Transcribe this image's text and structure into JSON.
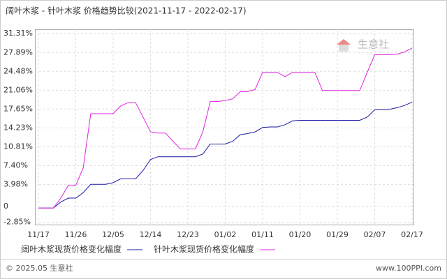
{
  "chart_data": {
    "type": "line",
    "title": "阔叶木浆 - 针叶木浆 价格趋势比较(2021-11-17 - 2022-02-17)",
    "categories": [
      "11/17",
      null,
      null,
      null,
      null,
      "11/26",
      null,
      null,
      null,
      null,
      "12/05",
      null,
      null,
      null,
      null,
      "12/14",
      null,
      null,
      null,
      null,
      "12/23",
      null,
      null,
      null,
      null,
      "01/02",
      null,
      null,
      null,
      null,
      "01/11",
      null,
      null,
      null,
      null,
      "01/20",
      null,
      null,
      null,
      null,
      "01/29",
      null,
      null,
      null,
      null,
      "02/07",
      null,
      null,
      null,
      null,
      "02/17"
    ],
    "series": [
      {
        "name": "阔叶木浆现货价格变化幅度",
        "color": "#1a1aa6",
        "values": [
          -0.3,
          -0.3,
          -0.3,
          0.8,
          1.5,
          1.5,
          2.5,
          4.0,
          4.0,
          4.0,
          4.3,
          5.0,
          5.0,
          5.0,
          6.5,
          8.5,
          9.0,
          9.0,
          9.0,
          9.0,
          9.0,
          9.0,
          9.5,
          11.3,
          11.3,
          11.3,
          11.8,
          13.0,
          13.2,
          13.5,
          14.3,
          14.4,
          14.4,
          14.8,
          15.5,
          15.6,
          15.6,
          15.6,
          15.6,
          15.6,
          15.6,
          15.6,
          15.6,
          15.6,
          16.2,
          17.5,
          17.5,
          17.6,
          17.9,
          18.3,
          18.9
        ]
      },
      {
        "name": "针叶木浆现货价格变化幅度",
        "color": "#e020e0",
        "values": [
          -0.3,
          -0.3,
          -0.3,
          1.5,
          3.8,
          3.8,
          7.0,
          16.8,
          16.8,
          16.8,
          16.8,
          18.2,
          18.8,
          18.8,
          16.2,
          13.5,
          13.3,
          13.3,
          11.8,
          10.4,
          10.4,
          10.4,
          13.5,
          19.0,
          19.0,
          19.2,
          19.5,
          20.8,
          20.8,
          21.2,
          24.3,
          24.3,
          24.3,
          23.5,
          24.3,
          24.3,
          24.3,
          24.3,
          21.0,
          21.0,
          21.0,
          21.0,
          21.0,
          21.0,
          24.3,
          27.5,
          27.5,
          27.5,
          27.6,
          28.0,
          28.7
        ]
      }
    ],
    "ylim": [
      -3.3,
      32.1
    ],
    "yticks": [
      {
        "value": -2.85,
        "label": "-2.85%"
      },
      0,
      {
        "value": 3.98,
        "label": "3.98%"
      },
      {
        "value": 7.4,
        "label": "7.40%"
      },
      {
        "value": 10.81,
        "label": "10.81%"
      },
      {
        "value": 14.23,
        "label": "14.23%"
      },
      {
        "value": 17.65,
        "label": "17.65%"
      },
      {
        "value": 21.06,
        "label": "21.06%"
      },
      {
        "value": 24.48,
        "label": "24.48%"
      },
      {
        "value": 27.89,
        "label": "27.89%"
      },
      {
        "value": 31.31,
        "label": "31.31%"
      }
    ],
    "grid": true,
    "watermark": "生意社",
    "footer_left": "© 2025.05 生意社",
    "footer_right": "www.100PPI.com"
  }
}
